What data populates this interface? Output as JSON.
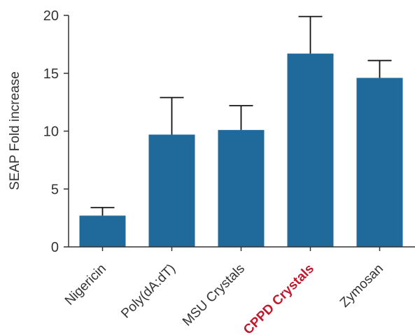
{
  "chart_data": {
    "type": "bar",
    "categories": [
      "Nigericin",
      "Poly(dA:dT)",
      "MSU Crystals",
      "CPPD Crystals",
      "Zymosan"
    ],
    "values": [
      2.7,
      9.7,
      10.1,
      16.7,
      14.6
    ],
    "error_upper": [
      3.4,
      12.9,
      12.2,
      19.9,
      16.1
    ],
    "highlighted_category": "CPPD Crystals",
    "ylabel": "SEAP Fold increase",
    "ylim": [
      0,
      20
    ],
    "yticks": [
      "0",
      "5",
      "10",
      "15",
      "20"
    ],
    "grid": false,
    "legend": "none",
    "colors": {
      "bar": "#20699b",
      "axis": "#333333",
      "highlight_label": "#c0192c"
    }
  }
}
